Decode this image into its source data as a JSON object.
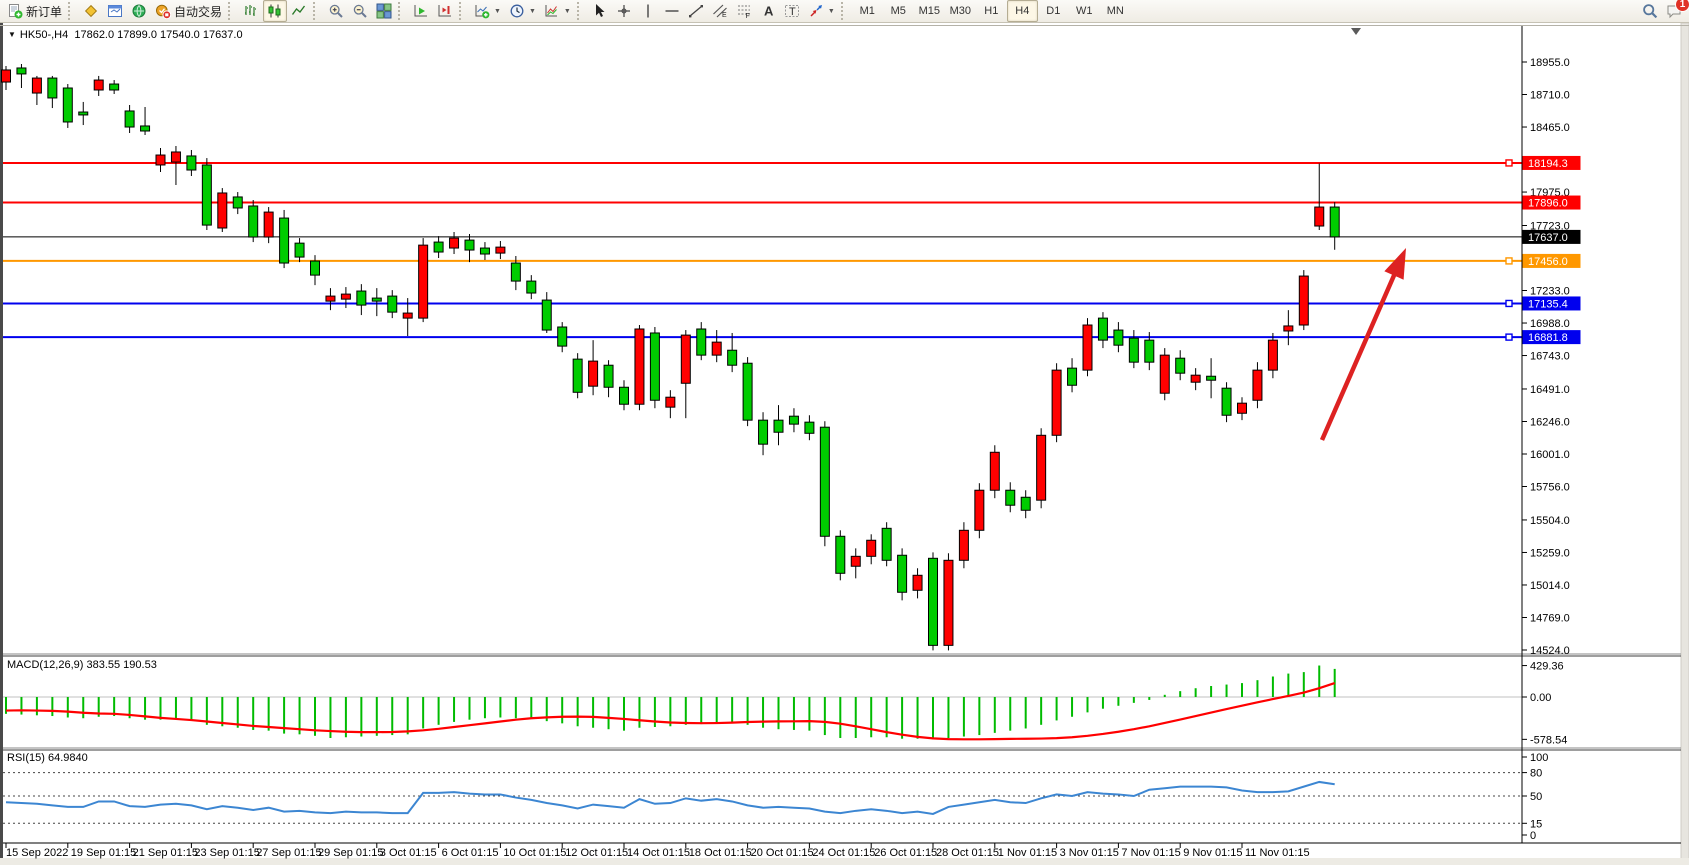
{
  "window": {
    "ohlc_header": {
      "collapse_arrow": "▼",
      "symbol_period": "HK50-,H4",
      "open": "17862.0",
      "high": "17899.0",
      "low": "17540.0",
      "close": "17637.0"
    }
  },
  "toolbar": {
    "items": [
      {
        "id": "new-order",
        "icon": "doc-plus-icon",
        "label": "新订单"
      },
      {
        "type": "sep"
      },
      {
        "id": "metaquotes",
        "icon": "gold-diamond-icon"
      },
      {
        "id": "data-window",
        "icon": "window-icon"
      },
      {
        "id": "news",
        "icon": "globe-icon"
      },
      {
        "id": "auto-trading",
        "icon": "autotrade-icon",
        "label": "自动交易"
      },
      {
        "type": "sep"
      },
      {
        "id": "bar-chart-mode",
        "icon": "bars-chart-icon"
      },
      {
        "id": "candle-chart-mode",
        "icon": "candles-icon",
        "active": true
      },
      {
        "id": "line-chart-mode",
        "icon": "line-chart-icon"
      },
      {
        "type": "sep"
      },
      {
        "id": "zoom-in",
        "icon": "zoom-in-icon"
      },
      {
        "id": "zoom-out",
        "icon": "zoom-out-icon"
      },
      {
        "id": "tile-windows",
        "icon": "tile-icon"
      },
      {
        "type": "sep"
      },
      {
        "id": "auto-scroll",
        "icon": "autoscroll-icon"
      },
      {
        "id": "chart-shift",
        "icon": "chartshift-icon"
      },
      {
        "type": "sep"
      },
      {
        "id": "new-chart",
        "icon": "newchart-icon",
        "dropdown": true
      },
      {
        "id": "periods",
        "icon": "clock-icon",
        "dropdown": true
      },
      {
        "id": "templates",
        "icon": "template-icon",
        "dropdown": true
      },
      {
        "type": "sep"
      },
      {
        "id": "cursor",
        "icon": "cursor-icon"
      },
      {
        "id": "crosshair",
        "icon": "crosshair-icon"
      },
      {
        "id": "vertical-line",
        "icon": "vline-icon"
      },
      {
        "id": "horizontal-line",
        "icon": "hline-icon"
      },
      {
        "id": "trendline",
        "icon": "trendline-icon"
      },
      {
        "id": "equidistant-channel",
        "icon": "channel-icon"
      },
      {
        "id": "fibonacci",
        "icon": "fibo-icon"
      },
      {
        "id": "text",
        "icon": "text-a-icon"
      },
      {
        "id": "text-label",
        "icon": "label-t-icon"
      },
      {
        "id": "arrows",
        "icon": "arrows-icon",
        "dropdown": true
      },
      {
        "type": "sep"
      }
    ],
    "timeframes": [
      "M1",
      "M5",
      "M15",
      "M30",
      "H1",
      "H4",
      "D1",
      "W1",
      "MN"
    ],
    "active_timeframe": "H4",
    "notification_badge": "1"
  },
  "chart_data": {
    "type": "candlestick",
    "symbol": "HK50-",
    "timeframe": "H4",
    "up_color": "#ff0000",
    "down_color": "#00cc00",
    "price_axis_ticks": [
      18955.0,
      18710.0,
      18465.0,
      17975.0,
      17723.0,
      17233.0,
      16988.0,
      16743.0,
      16491.0,
      16246.0,
      16001.0,
      15756.0,
      15504.0,
      15259.0,
      15014.0,
      14769.0,
      14524.0
    ],
    "horizontal_lines": [
      {
        "price": 18194.3,
        "label": "18194.3",
        "color": "#ff0000",
        "width": 2,
        "marker": true
      },
      {
        "price": 17896.0,
        "label": "17896.0",
        "color": "#ff0000",
        "width": 2,
        "marker": false
      },
      {
        "price": 17637.0,
        "label": "17637.0",
        "color": "#000000",
        "width": 1,
        "marker": false
      },
      {
        "price": 17456.0,
        "label": "17456.0",
        "color": "#ff9800",
        "width": 2,
        "marker": true
      },
      {
        "price": 17135.4,
        "label": "17135.4",
        "color": "#0000ee",
        "width": 2,
        "marker": true
      },
      {
        "price": 16881.8,
        "label": "16881.8",
        "color": "#0000ee",
        "width": 2,
        "marker": true
      }
    ],
    "time_axis_labels": [
      "15 Sep 2022",
      "19 Sep 01:15",
      "21 Sep 01:15",
      "23 Sep 01:15",
      "27 Sep 01:15",
      "29 Sep 01:15",
      "3 Oct 01:15",
      "6 Oct 01:15",
      "10 Oct 01:15",
      "12 Oct 01:15",
      "14 Oct 01:15",
      "18 Oct 01:15",
      "20 Oct 01:15",
      "24 Oct 01:15",
      "26 Oct 01:15",
      "28 Oct 01:15",
      "1 Nov 01:15",
      "3 Nov 01:15",
      "7 Nov 01:15",
      "9 Nov 01:15",
      "11 Nov 01:15"
    ],
    "candles": [
      [
        18804,
        18925,
        18744,
        18895
      ],
      [
        18910,
        18940,
        18759,
        18865
      ],
      [
        18721,
        18850,
        18631,
        18834
      ],
      [
        18834,
        18850,
        18608,
        18684
      ],
      [
        18759,
        18789,
        18458,
        18503
      ],
      [
        18578,
        18654,
        18480,
        18556
      ],
      [
        18744,
        18850,
        18699,
        18819
      ],
      [
        18789,
        18819,
        18714,
        18744
      ],
      [
        18586,
        18631,
        18420,
        18465
      ],
      [
        18473,
        18616,
        18405,
        18435
      ],
      [
        18179,
        18307,
        18126,
        18254
      ],
      [
        18201,
        18322,
        18028,
        18277
      ],
      [
        18247,
        18292,
        18096,
        18141
      ],
      [
        18179,
        18231,
        17689,
        17726
      ],
      [
        17704,
        18005,
        17674,
        17968
      ],
      [
        17938,
        17975,
        17809,
        17855
      ],
      [
        17870,
        17915,
        17598,
        17636
      ],
      [
        17636,
        17862,
        17590,
        17824
      ],
      [
        17779,
        17840,
        17402,
        17440
      ],
      [
        17590,
        17628,
        17447,
        17485
      ],
      [
        17455,
        17500,
        17274,
        17349
      ],
      [
        17153,
        17251,
        17085,
        17191
      ],
      [
        17168,
        17259,
        17101,
        17206
      ],
      [
        17229,
        17281,
        17048,
        17123
      ],
      [
        17176,
        17251,
        17040,
        17153
      ],
      [
        17191,
        17236,
        17025,
        17070
      ],
      [
        17025,
        17176,
        16890,
        17063
      ],
      [
        17025,
        17628,
        16995,
        17575
      ],
      [
        17598,
        17643,
        17478,
        17523
      ],
      [
        17553,
        17674,
        17508,
        17628
      ],
      [
        17613,
        17659,
        17447,
        17538
      ],
      [
        17553,
        17598,
        17463,
        17508
      ],
      [
        17515,
        17606,
        17470,
        17560
      ],
      [
        17440,
        17493,
        17236,
        17304
      ],
      [
        17304,
        17349,
        17168,
        17214
      ],
      [
        17161,
        17221,
        16913,
        16935
      ],
      [
        16958,
        16995,
        16768,
        16814
      ],
      [
        16716,
        16761,
        16421,
        16466
      ],
      [
        16512,
        16859,
        16444,
        16701
      ],
      [
        16670,
        16708,
        16429,
        16504
      ],
      [
        16504,
        16557,
        16331,
        16376
      ],
      [
        16376,
        16973,
        16331,
        16943
      ],
      [
        16913,
        16958,
        16346,
        16406
      ],
      [
        16354,
        16482,
        16271,
        16429
      ],
      [
        16534,
        16935,
        16271,
        16897
      ],
      [
        16943,
        16995,
        16708,
        16746
      ],
      [
        16746,
        16935,
        16693,
        16844
      ],
      [
        16783,
        16913,
        16618,
        16670
      ],
      [
        16685,
        16731,
        16211,
        16256
      ],
      [
        16256,
        16316,
        15992,
        16075
      ],
      [
        16256,
        16369,
        16067,
        16165
      ],
      [
        16286,
        16346,
        16165,
        16226
      ],
      [
        16241,
        16293,
        16105,
        16157
      ],
      [
        16203,
        16248,
        15306,
        15381
      ],
      [
        15381,
        15426,
        15049,
        15102
      ],
      [
        15155,
        15290,
        15064,
        15230
      ],
      [
        15230,
        15396,
        15170,
        15351
      ],
      [
        15441,
        15487,
        15155,
        15200
      ],
      [
        15238,
        15290,
        14898,
        14959
      ],
      [
        14974,
        15140,
        14913,
        15087
      ],
      [
        15215,
        15260,
        14521,
        14559
      ],
      [
        14559,
        15253,
        14521,
        15200
      ],
      [
        15200,
        15487,
        15140,
        15426
      ],
      [
        15426,
        15781,
        15366,
        15728
      ],
      [
        15728,
        16067,
        15668,
        16014
      ],
      [
        15728,
        15788,
        15562,
        15615
      ],
      [
        15675,
        15728,
        15517,
        15577
      ],
      [
        15653,
        16195,
        15592,
        16142
      ],
      [
        16142,
        16685,
        16090,
        16633
      ],
      [
        16648,
        16723,
        16466,
        16519
      ],
      [
        16633,
        17025,
        16587,
        16973
      ],
      [
        17025,
        17070,
        16799,
        16859
      ],
      [
        16935,
        16995,
        16768,
        16821
      ],
      [
        16874,
        16935,
        16648,
        16693
      ],
      [
        16859,
        16920,
        16633,
        16693
      ],
      [
        16459,
        16799,
        16406,
        16746
      ],
      [
        16723,
        16783,
        16557,
        16610
      ],
      [
        16542,
        16648,
        16482,
        16595
      ],
      [
        16587,
        16723,
        16421,
        16557
      ],
      [
        16497,
        16542,
        16241,
        16293
      ],
      [
        16308,
        16429,
        16256,
        16384
      ],
      [
        16406,
        16693,
        16346,
        16633
      ],
      [
        16633,
        16913,
        16572,
        16859
      ],
      [
        16928,
        17085,
        16821,
        16966
      ],
      [
        16973,
        17387,
        16935,
        17342
      ],
      [
        17719,
        18190,
        17689,
        17862
      ],
      [
        17862,
        17899,
        17540,
        17637
      ]
    ],
    "macd": {
      "label": "MACD(12,26,9) 383.55 190.53",
      "axis_ticks": [
        "429.36",
        "0.00",
        "-578.54"
      ],
      "histogram_color": "#00bb00",
      "signal_color": "#ff0000",
      "histogram": [
        -230,
        -240,
        -250,
        -260,
        -280,
        -290,
        -270,
        -260,
        -290,
        -310,
        -310,
        -300,
        -320,
        -380,
        -400,
        -420,
        -450,
        -460,
        -500,
        -510,
        -530,
        -560,
        -550,
        -540,
        -530,
        -520,
        -510,
        -430,
        -380,
        -340,
        -310,
        -290,
        -280,
        -290,
        -300,
        -330,
        -360,
        -400,
        -420,
        -440,
        -460,
        -420,
        -410,
        -400,
        -380,
        -370,
        -360,
        -360,
        -380,
        -420,
        -440,
        -450,
        -460,
        -520,
        -560,
        -560,
        -550,
        -550,
        -570,
        -570,
        -578,
        -560,
        -540,
        -520,
        -490,
        -460,
        -430,
        -380,
        -320,
        -270,
        -210,
        -160,
        -120,
        -80,
        -40,
        30,
        80,
        120,
        150,
        170,
        190,
        230,
        280,
        320,
        340,
        430,
        384
      ],
      "signal": [
        -185,
        -182,
        -185,
        -190,
        -200,
        -215,
        -225,
        -230,
        -245,
        -265,
        -285,
        -300,
        -315,
        -335,
        -355,
        -375,
        -395,
        -410,
        -425,
        -440,
        -455,
        -465,
        -475,
        -480,
        -480,
        -478,
        -470,
        -455,
        -435,
        -410,
        -385,
        -360,
        -335,
        -310,
        -290,
        -278,
        -270,
        -268,
        -272,
        -285,
        -300,
        -318,
        -335,
        -348,
        -355,
        -358,
        -356,
        -350,
        -342,
        -336,
        -333,
        -332,
        -330,
        -340,
        -365,
        -400,
        -440,
        -480,
        -515,
        -545,
        -565,
        -575,
        -578,
        -578,
        -575,
        -572,
        -570,
        -568,
        -562,
        -550,
        -530,
        -505,
        -475,
        -440,
        -400,
        -355,
        -308,
        -260,
        -212,
        -165,
        -118,
        -72,
        -28,
        15,
        60,
        120,
        190
      ]
    },
    "rsi": {
      "label": "RSI(15) 64.9840",
      "axis_ticks": [
        "100",
        "80",
        "50",
        "15",
        "0"
      ],
      "levels": [
        80,
        50,
        15
      ],
      "line_color": "#3c86d2",
      "values": [
        42,
        41,
        40,
        38,
        36,
        36,
        43,
        43,
        37,
        36,
        39,
        40,
        38,
        33,
        37,
        35,
        32,
        35,
        30,
        31,
        29,
        28,
        30,
        29,
        29,
        28,
        28,
        54,
        54,
        55,
        53,
        52,
        52,
        48,
        45,
        41,
        38,
        34,
        39,
        37,
        35,
        46,
        40,
        41,
        47,
        44,
        46,
        43,
        38,
        35,
        36,
        35,
        34,
        30,
        28,
        31,
        33,
        31,
        28,
        30,
        27,
        36,
        39,
        42,
        45,
        42,
        41,
        47,
        52,
        50,
        55,
        53,
        52,
        50,
        58,
        60,
        62,
        62,
        62,
        61,
        57,
        55,
        55,
        56,
        62,
        68,
        65
      ]
    },
    "annotation_arrow": {
      "from": [
        1322,
        440
      ],
      "to": [
        1406,
        248
      ],
      "color": "#dd2222"
    }
  }
}
